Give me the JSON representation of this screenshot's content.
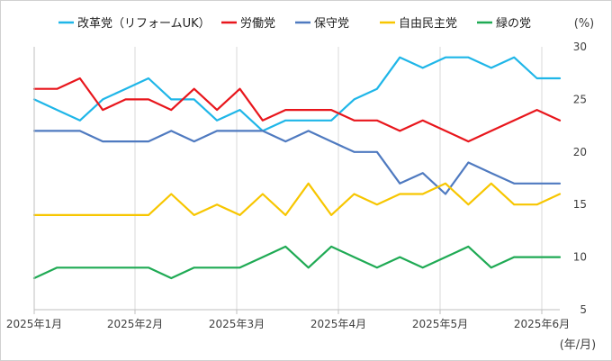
{
  "chart_data": {
    "type": "line",
    "xlabel": "(年/月)",
    "ylabel": "(%)",
    "ylim": [
      5,
      30
    ],
    "y_ticks": [
      5,
      10,
      15,
      20,
      25,
      30
    ],
    "y_tick_labels": [
      "5",
      "10",
      "15",
      "20",
      "25",
      "30"
    ],
    "x_tick_labels": [
      "2025年1月",
      "2025年2月",
      "2025年3月",
      "2025年4月",
      "2025年5月",
      "2025年6月"
    ],
    "grid": "vertical",
    "legend_position": "top",
    "series": [
      {
        "name": "改革党（リフォームUK）",
        "color": "#1fb6e8",
        "values": [
          25,
          24,
          23,
          25,
          26,
          27,
          25,
          25,
          23,
          24,
          22,
          23,
          23,
          23,
          25,
          26,
          29,
          28,
          29,
          29,
          28,
          29,
          27,
          27
        ]
      },
      {
        "name": "労働党",
        "color": "#e8161c",
        "values": [
          26,
          26,
          27,
          24,
          25,
          25,
          24,
          26,
          24,
          26,
          23,
          24,
          24,
          24,
          23,
          23,
          22,
          23,
          22,
          21,
          22,
          23,
          24,
          23
        ]
      },
      {
        "name": "保守党",
        "color": "#4f7ac0",
        "values": [
          22,
          22,
          22,
          21,
          21,
          21,
          22,
          21,
          22,
          22,
          22,
          21,
          22,
          21,
          20,
          20,
          17,
          18,
          16,
          19,
          18,
          17,
          17,
          17
        ]
      },
      {
        "name": "自由民主党",
        "color": "#f7c600",
        "values": [
          14,
          14,
          14,
          14,
          14,
          14,
          16,
          14,
          15,
          14,
          16,
          14,
          17,
          14,
          16,
          15,
          16,
          16,
          17,
          15,
          17,
          15,
          15,
          16
        ]
      },
      {
        "name": "緑の党",
        "color": "#1faa54",
        "values": [
          8,
          9,
          9,
          9,
          9,
          9,
          8,
          9,
          9,
          9,
          10,
          11,
          9,
          11,
          10,
          9,
          10,
          9,
          10,
          11,
          9,
          10,
          10,
          10
        ]
      }
    ]
  }
}
